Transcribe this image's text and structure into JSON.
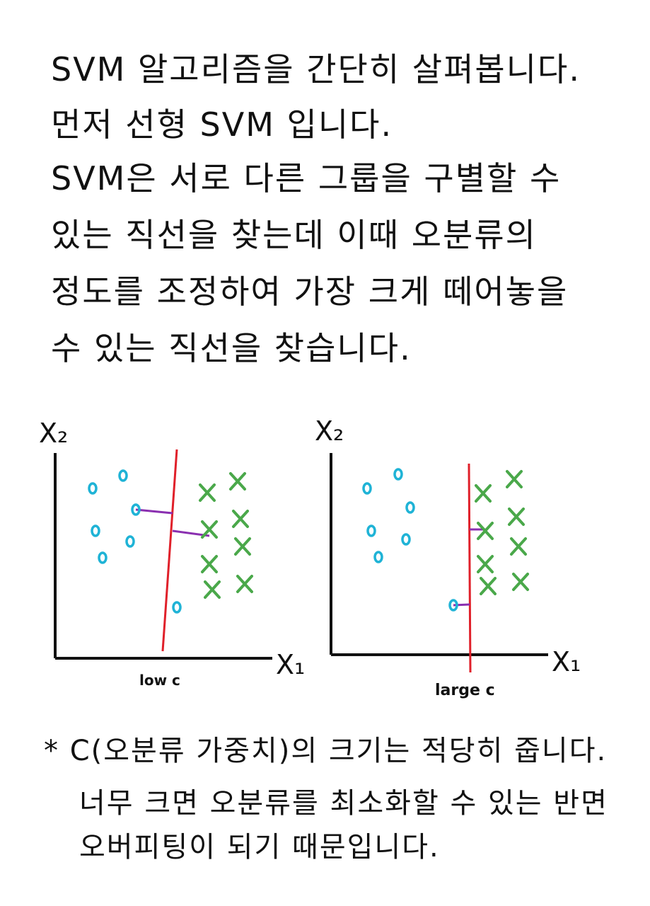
{
  "intro_lines": [
    "SVM 알고리즘을 간단히 살펴봅니다.",
    "먼저 선형 SVM 입니다.",
    "SVM은 서로 다른 그룹을 구별할 수",
    "있는 직선을 찾는데 이때 오분류의",
    "정도를 조정하여 가장 크게 떼어놓을",
    "수 있는 직선을 찾습니다."
  ],
  "diagrams": [
    {
      "x_axis_label": "X₁",
      "y_axis_label": "X₂",
      "caption": "low c"
    },
    {
      "x_axis_label": "X₁",
      "y_axis_label": "X₂",
      "caption": "large c"
    }
  ],
  "colors": {
    "circle_class": "#1fb3d6",
    "cross_class": "#4aa84a",
    "boundary": "#e0202a",
    "margin_line": "#8a2fb0"
  },
  "note_lines": [
    "* C(오분류 가중치)의 크기는 적당히 줍니다.",
    "너무 크면 오분류를 최소화할 수 있는 반면",
    "오버피팅이 되기 때문입니다."
  ]
}
